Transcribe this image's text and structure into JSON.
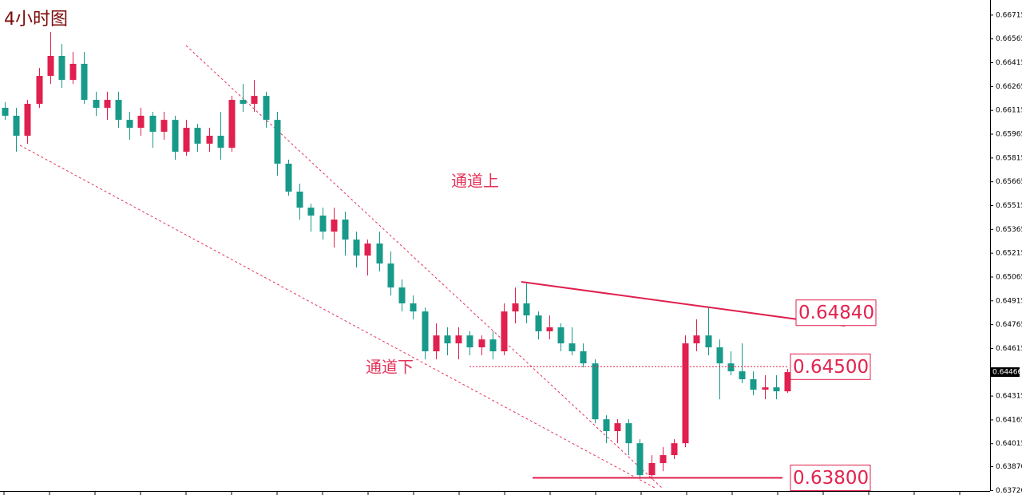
{
  "chart_data": {
    "type": "candlestick",
    "title": "4小时图",
    "up_color": "#e0204e",
    "down_color": "#189a8a",
    "ylim": [
      0.63717,
      0.6681
    ],
    "yticks": [
      0.66715,
      0.66565,
      0.66415,
      0.66265,
      0.66115,
      0.65965,
      0.65815,
      0.65665,
      0.65515,
      0.65365,
      0.65215,
      0.65065,
      0.64915,
      0.64765,
      0.64615,
      0.64315,
      0.64165,
      0.64015,
      {
        "value": 0.6387,
        "label": "0.63870"
      },
      {
        "value": 0.6372,
        "label": "0.63720"
      }
    ],
    "current_price": 0.64466,
    "annotations": [
      "通道上",
      "通道下"
    ],
    "levels": [
      {
        "value": 0.6484,
        "label": "0.64840"
      },
      {
        "value": 0.645,
        "label": "0.64500"
      },
      {
        "value": 0.638,
        "label": "0.63800"
      }
    ],
    "ohlc": [
      [
        0.66131,
        0.66166,
        0.66055,
        0.66081
      ],
      [
        0.66081,
        0.66131,
        0.65854,
        0.65955
      ],
      [
        0.65955,
        0.66181,
        0.65905,
        0.66156
      ],
      [
        0.66156,
        0.66382,
        0.66131,
        0.66332
      ],
      [
        0.66332,
        0.66609,
        0.66282,
        0.66458
      ],
      [
        0.66458,
        0.66533,
        0.66257,
        0.66307
      ],
      [
        0.66307,
        0.66483,
        0.66282,
        0.66408
      ],
      [
        0.66408,
        0.66483,
        0.66156,
        0.66181
      ],
      [
        0.66181,
        0.66232,
        0.66081,
        0.66131
      ],
      [
        0.66131,
        0.66232,
        0.66055,
        0.66181
      ],
      [
        0.66181,
        0.66232,
        0.66005,
        0.66055
      ],
      [
        0.66055,
        0.66106,
        0.6593,
        0.66005
      ],
      [
        0.66005,
        0.66131,
        0.65955,
        0.66081
      ],
      [
        0.66081,
        0.66106,
        0.65879,
        0.6598
      ],
      [
        0.6598,
        0.66106,
        0.6593,
        0.66055
      ],
      [
        0.66055,
        0.66081,
        0.65804,
        0.65854
      ],
      [
        0.65854,
        0.66055,
        0.65829,
        0.66005
      ],
      [
        0.66005,
        0.6603,
        0.65854,
        0.65905
      ],
      [
        0.65905,
        0.66005,
        0.65854,
        0.65955
      ],
      [
        0.65955,
        0.66106,
        0.65804,
        0.65879
      ],
      [
        0.65879,
        0.66206,
        0.65854,
        0.66181
      ],
      [
        0.66181,
        0.66282,
        0.66106,
        0.66156
      ],
      [
        0.66156,
        0.66307,
        0.66106,
        0.66206
      ],
      [
        0.66206,
        0.66232,
        0.66005,
        0.66055
      ],
      [
        0.66055,
        0.66106,
        0.65703,
        0.65779
      ],
      [
        0.65779,
        0.65804,
        0.65578,
        0.65603
      ],
      [
        0.65603,
        0.65653,
        0.65427,
        0.65502
      ],
      [
        0.65502,
        0.65527,
        0.65351,
        0.65452
      ],
      [
        0.65452,
        0.65502,
        0.65301,
        0.65351
      ],
      [
        0.65351,
        0.65502,
        0.65251,
        0.65427
      ],
      [
        0.65427,
        0.65477,
        0.652,
        0.65301
      ],
      [
        0.65301,
        0.65351,
        0.65125,
        0.652
      ],
      [
        0.652,
        0.65301,
        0.65075,
        0.65276
      ],
      [
        0.65276,
        0.65351,
        0.651,
        0.6515
      ],
      [
        0.6515,
        0.65226,
        0.64949,
        0.64999
      ],
      [
        0.64999,
        0.65049,
        0.64848,
        0.64899
      ],
      [
        0.64899,
        0.64949,
        0.64798,
        0.64848
      ],
      [
        0.64848,
        0.64873,
        0.64546,
        0.64597
      ],
      [
        0.64597,
        0.64773,
        0.64546,
        0.64697
      ],
      [
        0.64697,
        0.64748,
        0.64572,
        0.64647
      ],
      [
        0.64647,
        0.64748,
        0.64546,
        0.64697
      ],
      [
        0.64697,
        0.64723,
        0.64572,
        0.64622
      ],
      [
        0.64622,
        0.64697,
        0.64572,
        0.64672
      ],
      [
        0.64672,
        0.64723,
        0.64546,
        0.64597
      ],
      [
        0.64597,
        0.64899,
        0.64572,
        0.64848
      ],
      [
        0.64848,
        0.64999,
        0.64773,
        0.64899
      ],
      [
        0.64899,
        0.65024,
        0.64773,
        0.64823
      ],
      [
        0.64823,
        0.64848,
        0.64672,
        0.64723
      ],
      [
        0.64723,
        0.64823,
        0.64672,
        0.64748
      ],
      [
        0.64748,
        0.64773,
        0.64597,
        0.64647
      ],
      [
        0.64647,
        0.64748,
        0.64572,
        0.64597
      ],
      [
        0.64597,
        0.64647,
        0.64496,
        0.64521
      ],
      [
        0.64521,
        0.64546,
        0.64144,
        0.64169
      ],
      [
        0.64169,
        0.64194,
        0.64018,
        0.64094
      ],
      [
        0.64094,
        0.64169,
        0.64018,
        0.64144
      ],
      [
        0.64144,
        0.64169,
        0.63943,
        0.64018
      ],
      [
        0.64018,
        0.64043,
        0.63792,
        0.63817
      ],
      [
        0.63817,
        0.63943,
        0.63792,
        0.63893
      ],
      [
        0.63893,
        0.63993,
        0.63842,
        0.63943
      ],
      [
        0.63943,
        0.64043,
        0.63918,
        0.64018
      ],
      [
        0.64018,
        0.64697,
        0.63993,
        0.64647
      ],
      [
        0.64647,
        0.64798,
        0.64597,
        0.64697
      ],
      [
        0.64697,
        0.64873,
        0.64572,
        0.64622
      ],
      [
        0.64622,
        0.64672,
        0.64295,
        0.64521
      ],
      [
        0.64521,
        0.64597,
        0.64446,
        0.64471
      ],
      [
        0.64471,
        0.64647,
        0.64396,
        0.64421
      ],
      [
        0.64421,
        0.64471,
        0.6432,
        0.64355
      ],
      [
        0.64355,
        0.64446,
        0.64295,
        0.6437
      ],
      [
        0.6437,
        0.64446,
        0.64295,
        0.64345
      ],
      [
        0.64345,
        0.64486,
        0.64335,
        0.64466
      ]
    ]
  }
}
